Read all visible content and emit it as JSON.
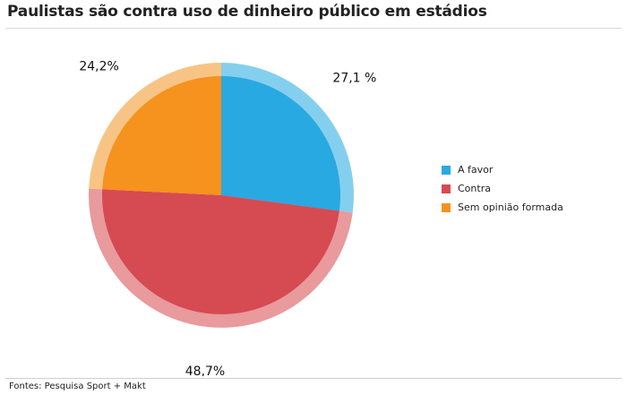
{
  "chart_data": {
    "type": "pie",
    "title": "Paulistas são contra uso de dinheiro público em estádios",
    "slices": [
      {
        "label": "A favor",
        "value": 27.1,
        "value_label": "27,1 %",
        "color": "#29a9e1",
        "ring_color": "#85cfee"
      },
      {
        "label": "Contra",
        "value": 48.7,
        "value_label": "48,7%",
        "color": "#d64a52",
        "ring_color": "#e89a9c"
      },
      {
        "label": "Sem opinião formada",
        "value": 24.2,
        "value_label": "24,2%",
        "color": "#f6921e",
        "ring_color": "#f8c485"
      }
    ],
    "legend_position": "right",
    "start_angle": "12 o'clock",
    "direction": "clockwise"
  },
  "footer": {
    "source": "Fontes: Pesquisa Sport + Makt"
  }
}
